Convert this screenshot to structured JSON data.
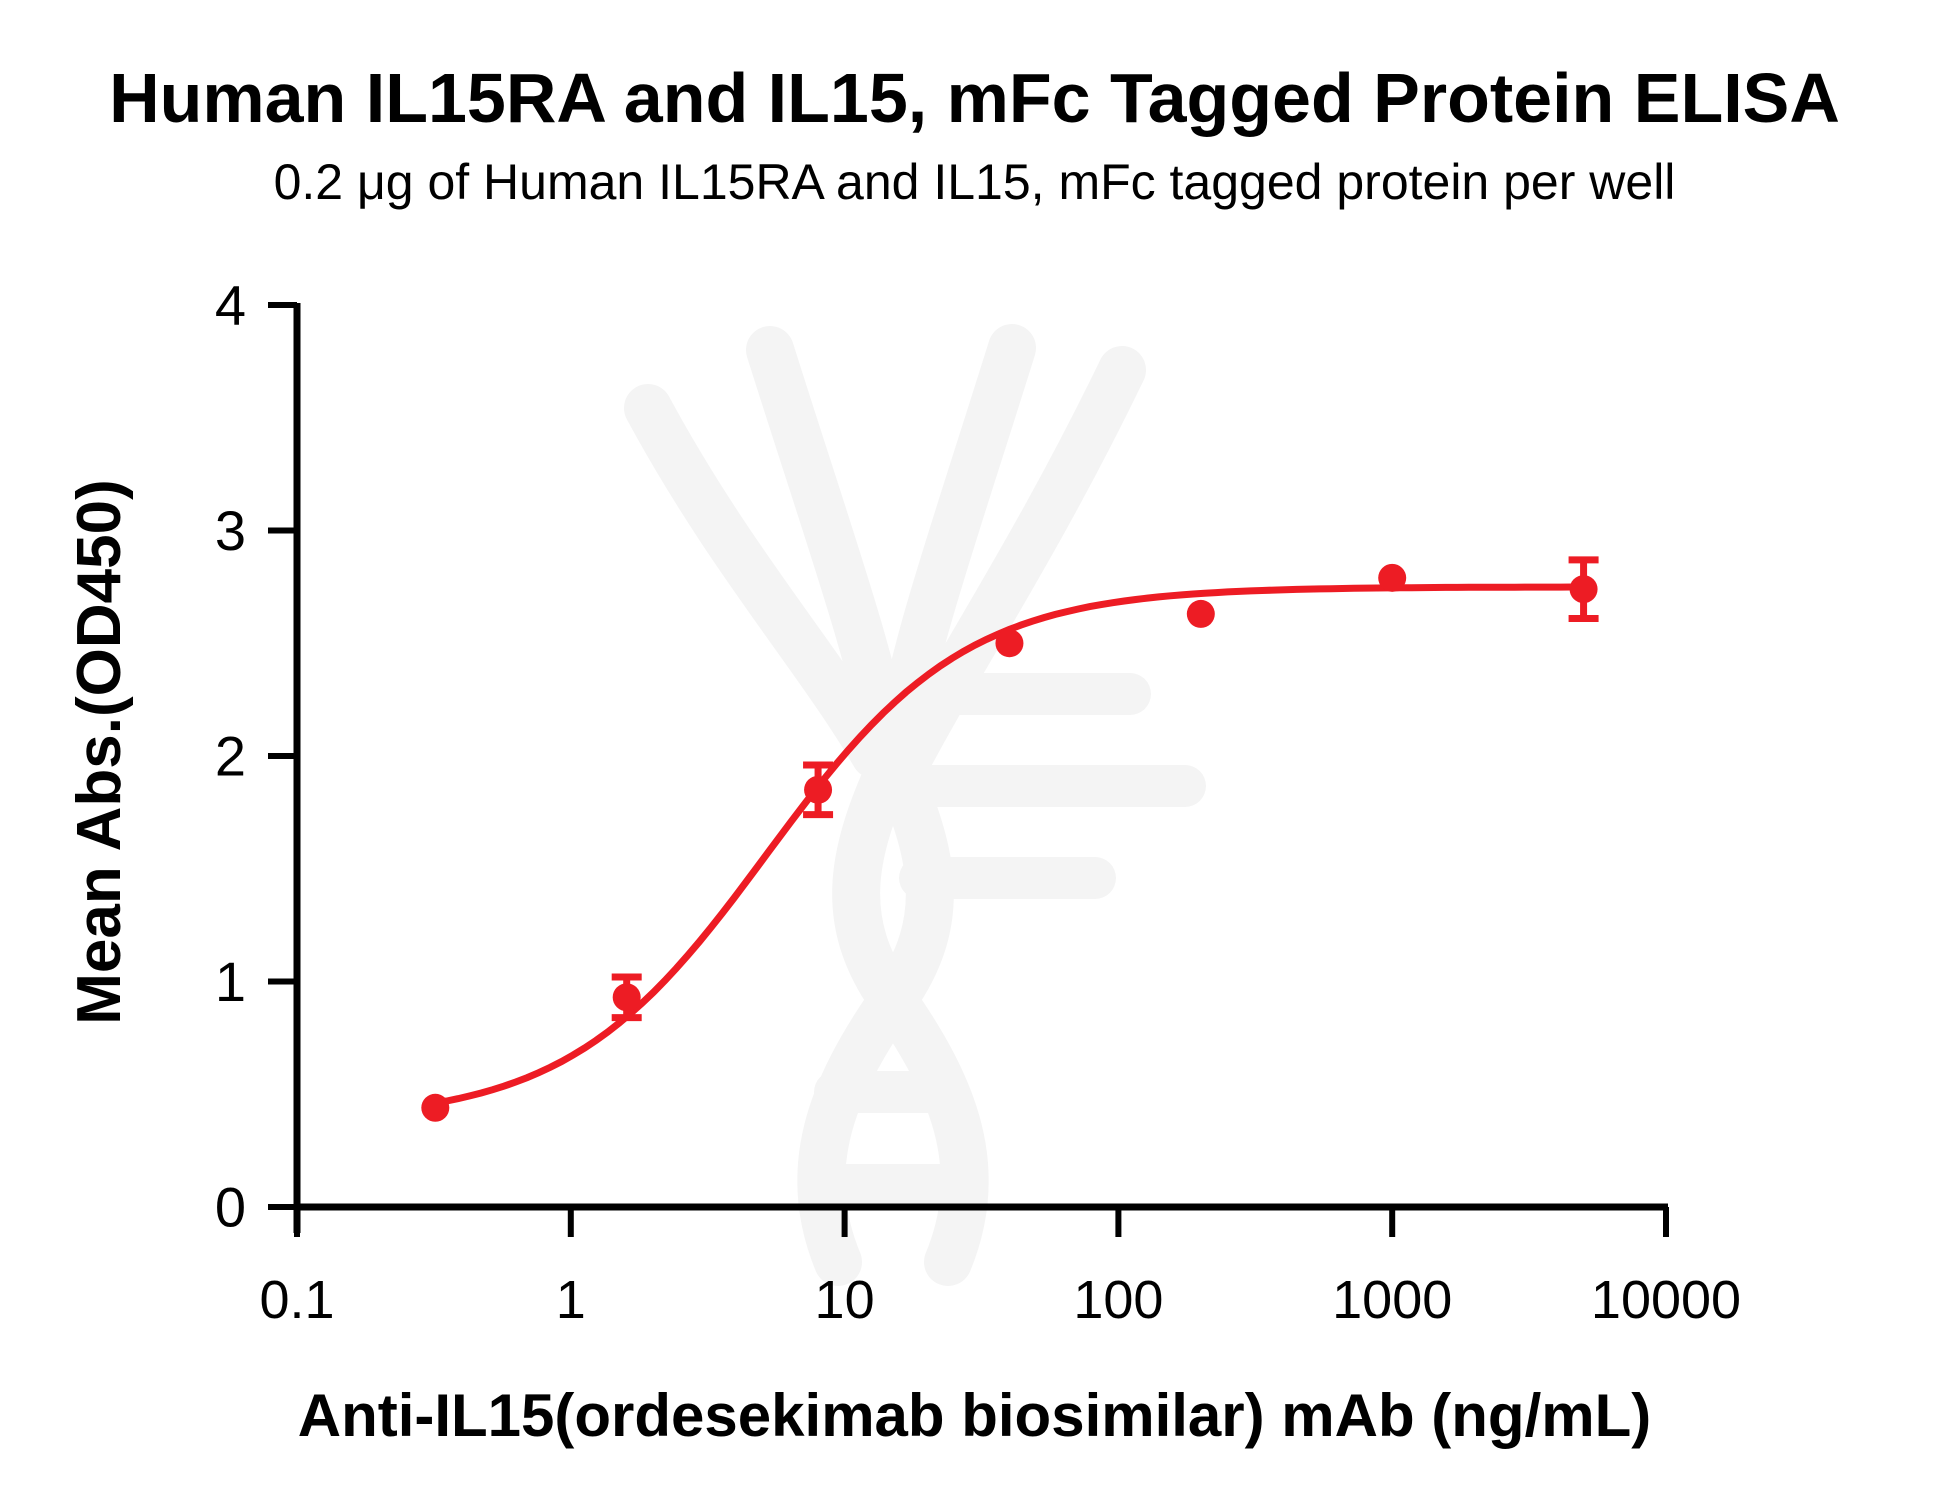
{
  "title": "Human IL15RA and IL15, mFc Tagged Protein ELISA",
  "subtitle": "0.2 μg of Human IL15RA and IL15, mFc tagged protein per well",
  "chart_data": {
    "type": "scatter",
    "title": "Human IL15RA and IL15, mFc Tagged Protein ELISA",
    "subtitle": "0.2 μg of Human IL15RA and IL15, mFc tagged protein per well",
    "xlabel": "Anti-IL15(ordesekimab biosimilar) mAb (ng/mL)",
    "ylabel": "Mean Abs.(OD450)",
    "x_scale": "log10",
    "xlim": [
      0.1,
      10000
    ],
    "ylim": [
      0,
      4
    ],
    "x_ticks": [
      "0.1",
      "1",
      "10",
      "100",
      "1000",
      "10000"
    ],
    "x_tick_values": [
      0.1,
      1,
      10,
      100,
      1000,
      10000
    ],
    "y_ticks": [
      "0",
      "1",
      "2",
      "3",
      "4"
    ],
    "y_tick_values": [
      0,
      1,
      2,
      3,
      4
    ],
    "grid": false,
    "legend": "none",
    "marker_color": "#ED1C24",
    "curve_color": "#ED1C24",
    "points": {
      "x": [
        0.32,
        1.6,
        8,
        40,
        200,
        1000,
        5000
      ],
      "y": [
        0.44,
        0.93,
        1.85,
        2.5,
        2.63,
        2.79,
        2.74
      ],
      "y_err": [
        0,
        0.09,
        0.11,
        0,
        0,
        0,
        0.13
      ]
    },
    "fit_curve": {
      "model": "4PL",
      "bottom": 0.38,
      "top": 2.75,
      "ec50": 5.2,
      "hill": 1.2,
      "x_range": [
        0.32,
        5000
      ]
    }
  }
}
